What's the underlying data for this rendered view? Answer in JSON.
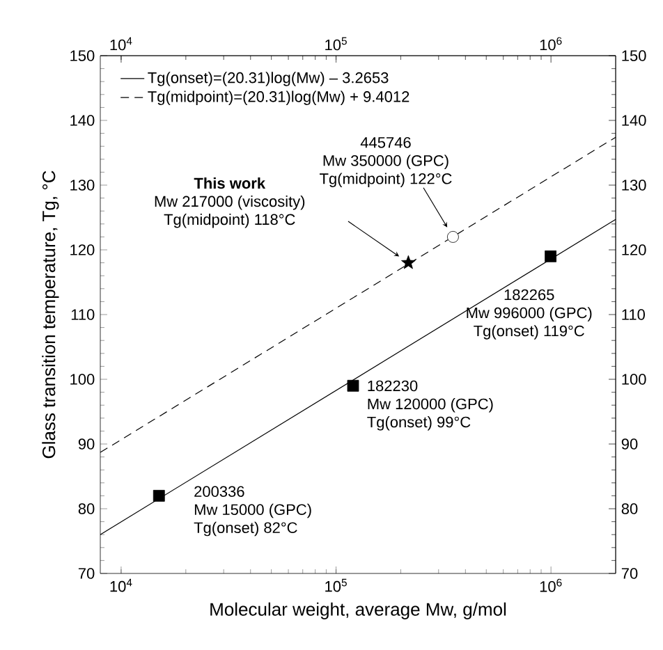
{
  "chart_data": {
    "type": "line",
    "xlabel": "Molecular weight, average Mw, g/mol",
    "ylabel": "Glass transition temperature, Tg, °C",
    "log": "x",
    "legend": "top left",
    "xlim": [
      8000,
      2000000
    ],
    "ylim": [
      70,
      150
    ],
    "xticks": [
      {
        "value": 10000,
        "label": "10$^{4}$"
      },
      {
        "value": 100000,
        "label": "10$^{5}$"
      },
      {
        "value": 1000000,
        "label": "10$^{6}$"
      }
    ],
    "yticks": [
      70,
      80,
      90,
      100,
      110,
      120,
      130,
      140,
      150
    ],
    "y2lim": [
      70,
      150
    ],
    "y2ticks": [
      70,
      80,
      90,
      100,
      110,
      120,
      130,
      140,
      150
    ],
    "series": [
      {
        "name": "Tg(onset)=(20.31)log(Mw) – 3.2653",
        "color": "#000000",
        "x": [
          8000,
          2000000
        ],
        "values": [
          76.0,
          124.7
        ],
        "line_style": "solid",
        "marker": "none"
      },
      {
        "name": "Tg(midpoint)=(20.31)log(Mw) + 9.4012",
        "color": "#000000",
        "x": [
          8000,
          2000000
        ],
        "values": [
          88.7,
          137.4
        ],
        "line_style": "dashed",
        "marker": "none"
      },
      {
        "type": "scatter",
        "color": "#000000",
        "x": [
          15000,
          120000,
          996000
        ],
        "values": [
          82,
          99,
          119
        ],
        "marker": "square"
      },
      {
        "type": "scatter",
        "color": "#000000",
        "x": [
          350000
        ],
        "values": [
          122
        ],
        "marker": "circle"
      },
      {
        "type": "scatter",
        "color": "#000000",
        "x": [
          217000
        ],
        "values": [
          118
        ],
        "marker": "star"
      }
    ],
    "annotations": [
      "200336",
      "Mw 15000 (GPC)",
      "Tg(onset) 82°C",
      "182230",
      "Mw 120000 (GPC)",
      "Tg(onset) 99°C",
      "182265",
      "Mw 996000 (GPC)",
      "Tg(onset) 119°C",
      "445746",
      "Mw 350000 (GPC)",
      "Tg(midpoint) 122°C",
      "**This work**",
      "Mw 217000 (viscosity)",
      "Tg(midpoint) 118°C"
    ]
  }
}
